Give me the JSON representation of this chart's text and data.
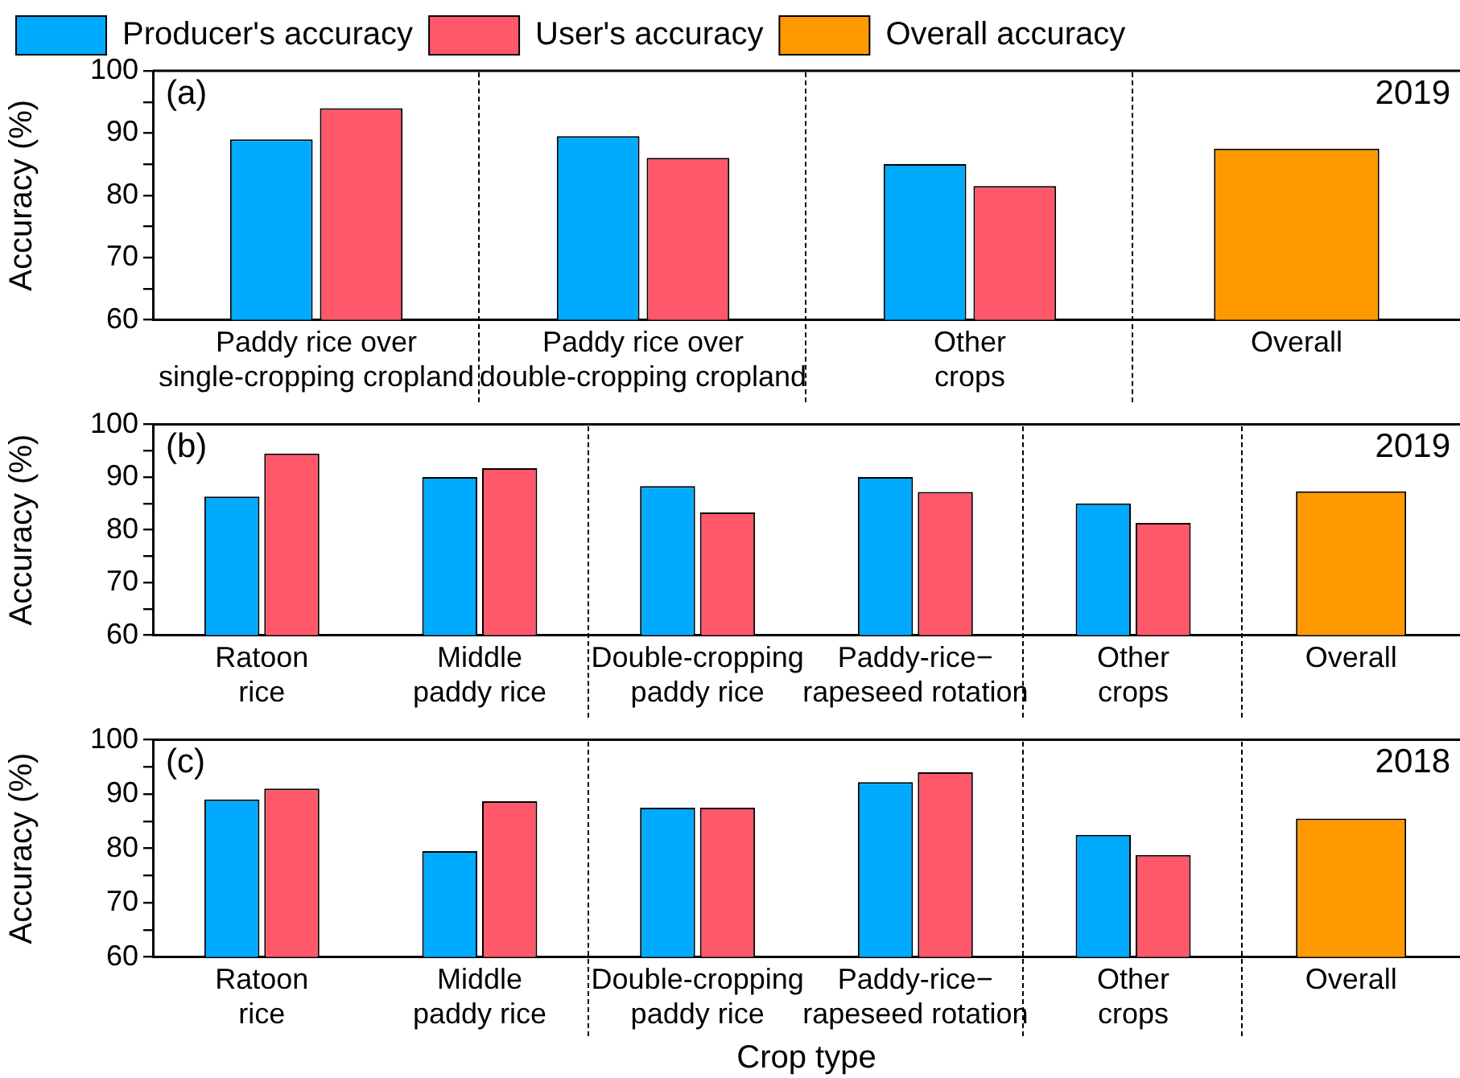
{
  "chart_data": [
    {
      "type": "bar",
      "ylabel": "Accuracy (%)",
      "categories": [
        "Paddy rice over\nsingle-cropping cropland",
        "Paddy rice over\ndouble-cropping cropland",
        "Other\ncrops",
        "Overall"
      ],
      "series": [
        {
          "name": "Producer's accuracy",
          "color": "#00aaff",
          "values": [
            89,
            89.5,
            85,
            null
          ]
        },
        {
          "name": "User's accuracy",
          "color": "#ff586b",
          "values": [
            94,
            86,
            81.5,
            null
          ]
        },
        {
          "name": "Overall accuracy",
          "color": "#ff9900",
          "values": [
            null,
            null,
            null,
            87.5
          ]
        }
      ],
      "ylim": [
        60,
        100
      ],
      "yticks": [
        60,
        {
          "value": 65,
          "label": null
        },
        70,
        {
          "value": 75,
          "label": null
        },
        80,
        {
          "value": 85,
          "label": null
        },
        90,
        {
          "value": 95,
          "label": null
        },
        100
      ],
      "grid": false,
      "legend": "top",
      "annotations": [
        "(a)",
        "2019"
      ]
    },
    {
      "type": "bar",
      "ylabel": "Accuracy (%)",
      "categories": [
        "Ratoon\nrice",
        "Middle\npaddy rice",
        "Double-cropping\npaddy rice",
        "Paddy-rice−\nrapeseed rotation",
        "Other\ncrops",
        "Overall"
      ],
      "series": [
        {
          "color": "#00aaff",
          "values": [
            86.3,
            90,
            88.3,
            90,
            85,
            null
          ]
        },
        {
          "color": "#ff586b",
          "values": [
            94.5,
            91.7,
            83.3,
            87.2,
            81.3,
            null
          ]
        },
        {
          "color": "#ff9900",
          "values": [
            null,
            null,
            null,
            null,
            null,
            87.3
          ]
        }
      ],
      "ylim": [
        60,
        100
      ],
      "yticks": [
        60,
        {
          "value": 65,
          "label": null
        },
        70,
        {
          "value": 75,
          "label": null
        },
        80,
        {
          "value": 85,
          "label": null
        },
        90,
        {
          "value": 95,
          "label": null
        },
        100
      ],
      "grid": false,
      "annotations": [
        "(b)",
        "2019"
      ]
    },
    {
      "type": "bar",
      "xlabel": "Crop type",
      "ylabel": "Accuracy (%)",
      "categories": [
        "Ratoon\nrice",
        "Middle\npaddy rice",
        "Double-cropping\npaddy rice",
        "Paddy-rice−\nrapeseed rotation",
        "Other\ncrops",
        "Overall"
      ],
      "series": [
        {
          "color": "#00aaff",
          "values": [
            89,
            79.5,
            87.5,
            92.2,
            82.5,
            null
          ]
        },
        {
          "color": "#ff586b",
          "values": [
            91,
            88.7,
            87.5,
            94,
            78.8,
            null
          ]
        },
        {
          "color": "#ff9900",
          "values": [
            null,
            null,
            null,
            null,
            null,
            85.5
          ]
        }
      ],
      "ylim": [
        60,
        100
      ],
      "yticks": [
        60,
        {
          "value": 65,
          "label": null
        },
        70,
        {
          "value": 75,
          "label": null
        },
        80,
        {
          "value": 85,
          "label": null
        },
        90,
        {
          "value": 95,
          "label": null
        },
        100
      ],
      "grid": false,
      "annotations": [
        "(c)",
        "2018"
      ]
    }
  ]
}
